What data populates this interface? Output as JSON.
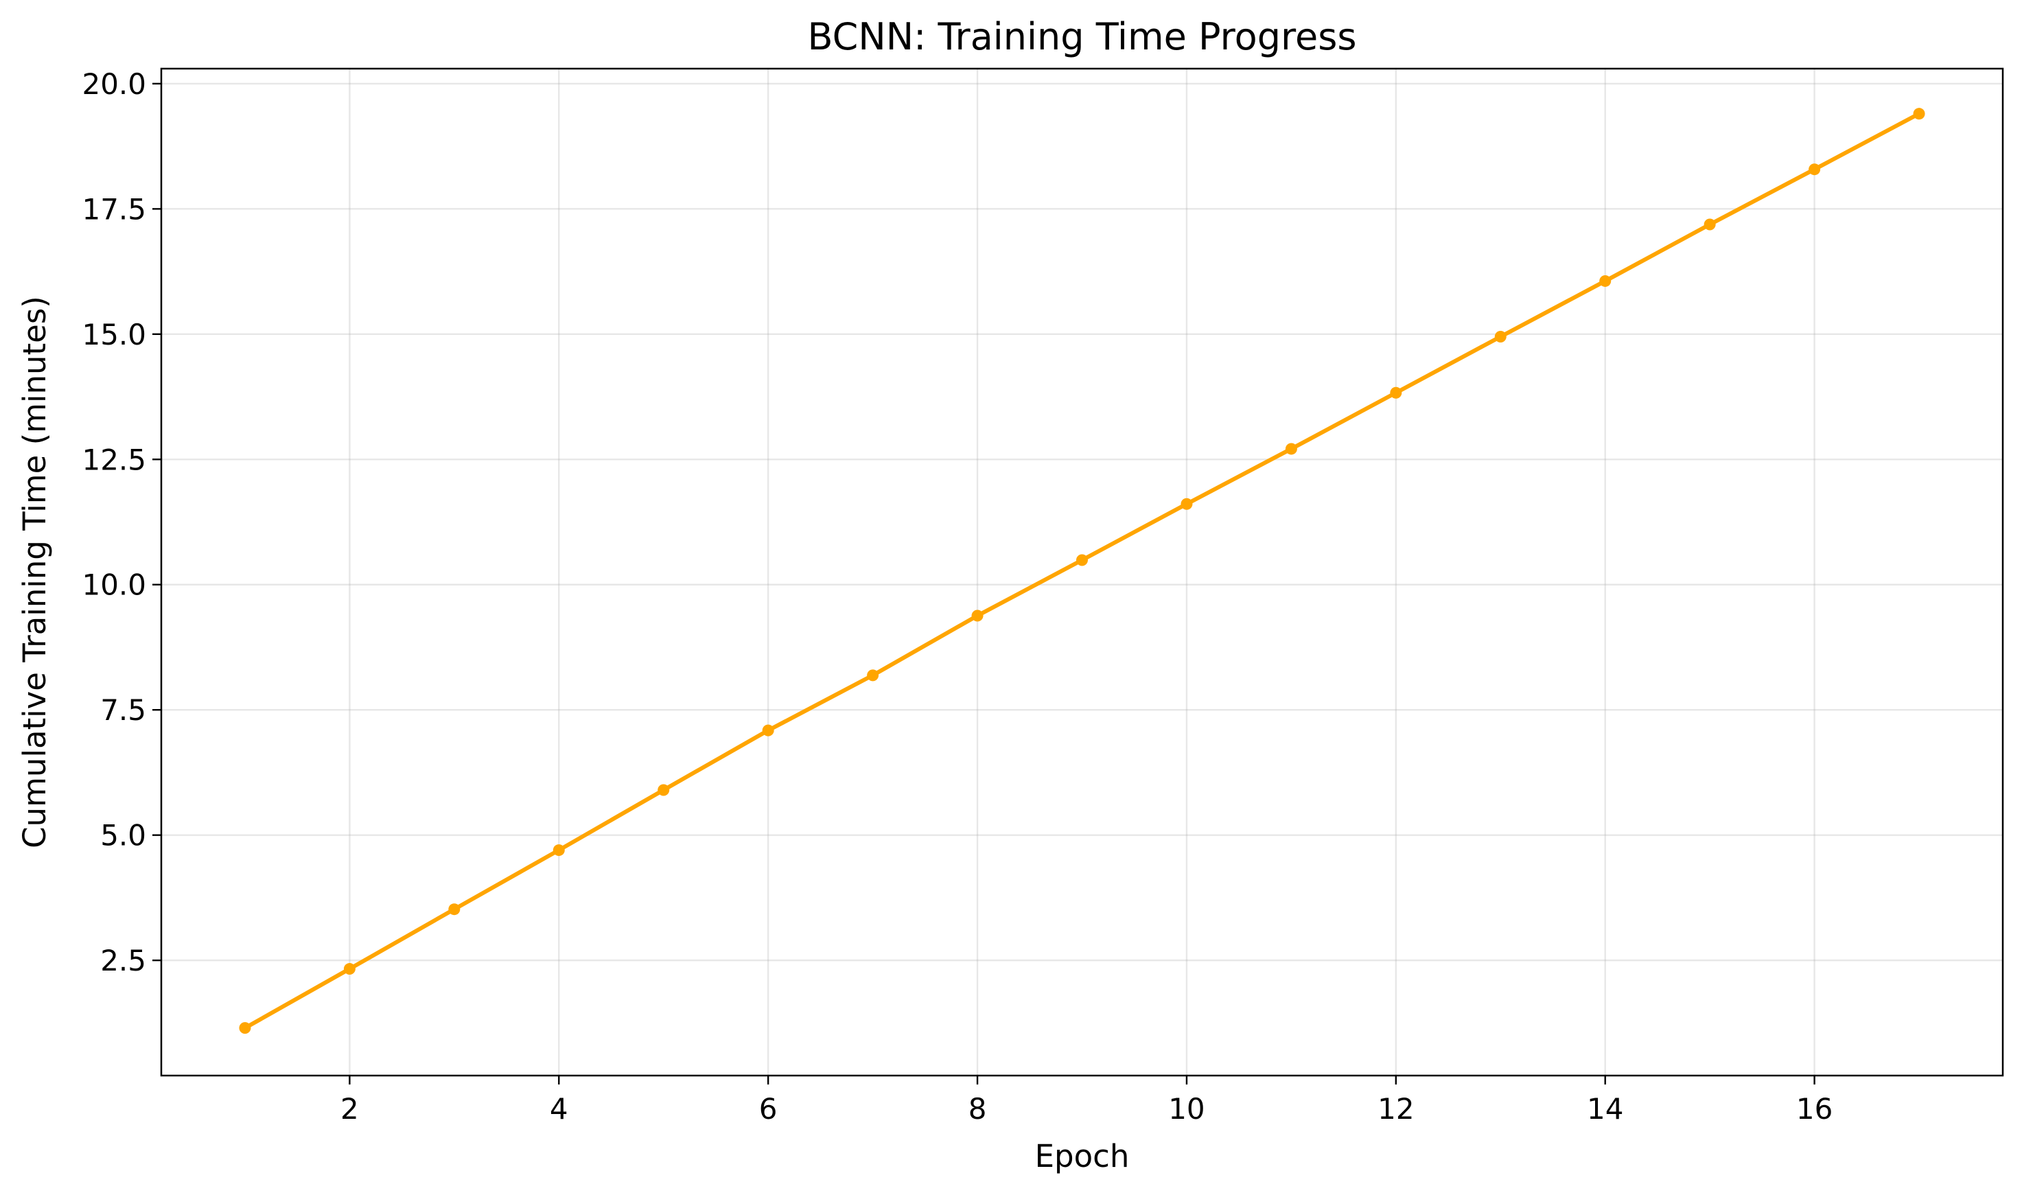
{
  "chart_data": {
    "type": "line",
    "title": "BCNN: Training Time Progress",
    "xlabel": "Epoch",
    "ylabel": "Cumulative Training Time (minutes)",
    "xlim": [
      0.2,
      17.8
    ],
    "ylim": [
      0.2,
      20.3
    ],
    "xticks": [
      2,
      4,
      6,
      8,
      10,
      12,
      14,
      16
    ],
    "xtick_labels": [
      "2",
      "4",
      "6",
      "8",
      "10",
      "12",
      "14",
      "16"
    ],
    "yticks": [
      2.5,
      5.0,
      7.5,
      10.0,
      12.5,
      15.0,
      17.5,
      20.0
    ],
    "ytick_labels": [
      "2.5",
      "5.0",
      "7.5",
      "10.0",
      "12.5",
      "15.0",
      "17.5",
      "20.0"
    ],
    "grid": true,
    "series": [
      {
        "color": "#FFA500",
        "marker": "circle",
        "x": [
          1,
          2,
          3,
          4,
          5,
          6,
          7,
          8,
          9,
          10,
          11,
          12,
          13,
          14,
          15,
          16,
          17
        ],
        "y": [
          1.15,
          2.33,
          3.52,
          4.7,
          5.9,
          7.09,
          8.19,
          9.38,
          10.49,
          11.61,
          12.71,
          13.83,
          14.95,
          16.06,
          17.19,
          18.29,
          19.4
        ]
      }
    ]
  }
}
